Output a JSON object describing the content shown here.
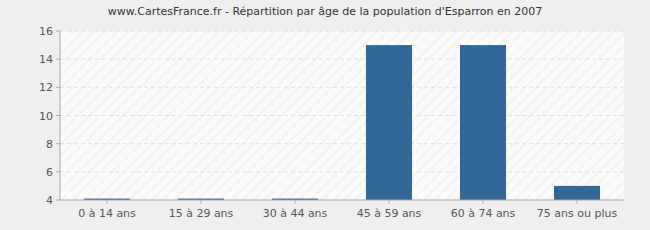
{
  "chart_data": {
    "type": "bar",
    "title": "www.CartesFrance.fr - Répartition par âge de la population d'Esparron en 2007",
    "categories": [
      "0 à 14 ans",
      "15 à 29 ans",
      "30 à 44 ans",
      "45 à 59 ans",
      "60 à 74 ans",
      "75 ans ou plus"
    ],
    "values": [
      4.1,
      4.1,
      4.1,
      15,
      15,
      5
    ],
    "color": "#336699",
    "ylim": [
      4,
      16
    ],
    "yticks": [
      4,
      6,
      8,
      10,
      12,
      14,
      16
    ],
    "grid": true
  }
}
